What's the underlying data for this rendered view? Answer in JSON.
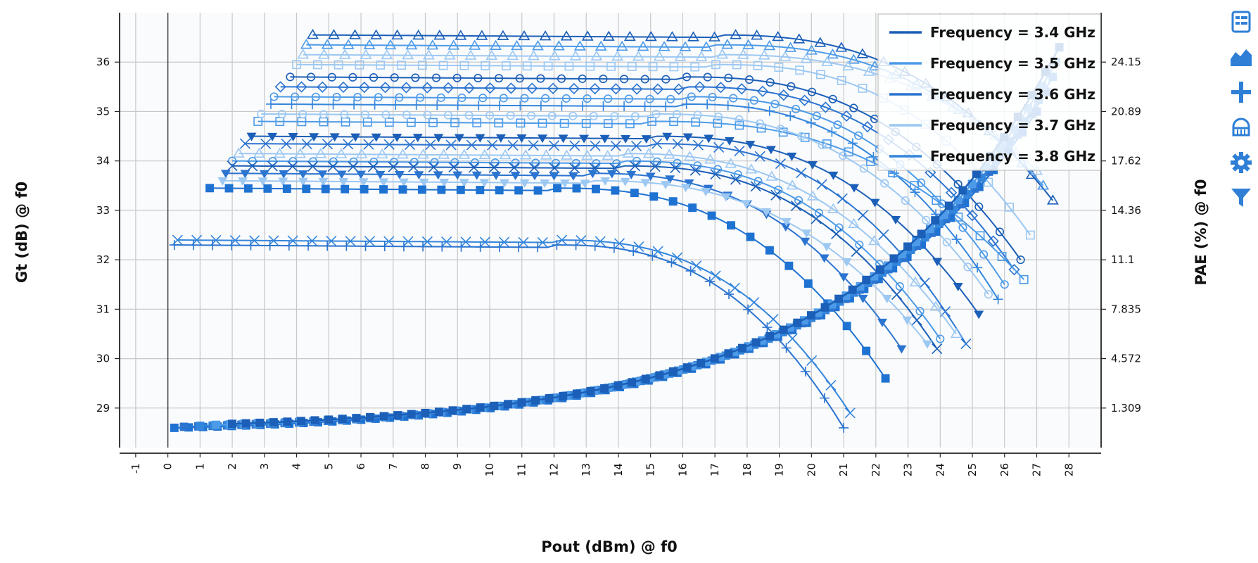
{
  "colors": {
    "background": "#ffffff",
    "plot_background": "#fafbfd",
    "grid": "#c8c8c8",
    "axis": "#222222",
    "legend_border": "#c0c0c0",
    "toolbar_icon": "#2f7fd6"
  },
  "toolbar": {
    "items": [
      {
        "icon": "legend-toggle-icon"
      },
      {
        "icon": "area-chart-icon"
      },
      {
        "icon": "crosshair-plus-icon"
      },
      {
        "icon": "reset-zoom-icon"
      },
      {
        "icon": "gear-icon"
      },
      {
        "icon": "filter-icon"
      }
    ]
  },
  "chart_data": {
    "type": "line",
    "title": "",
    "xlabel": "Pout (dBm) @ f0",
    "ylabel": "Gt (dB) @ f0",
    "y2label": "PAE (%) @ f0",
    "xlim": [
      -1.5,
      29
    ],
    "ylim": [
      28.2,
      37
    ],
    "x_ticks": [
      -1,
      0,
      1,
      2,
      3,
      4,
      5,
      6,
      7,
      8,
      9,
      10,
      11,
      12,
      13,
      14,
      15,
      16,
      17,
      18,
      19,
      20,
      21,
      22,
      23,
      24,
      25,
      26,
      27,
      28
    ],
    "y_ticks": [
      29,
      30,
      31,
      32,
      33,
      34,
      35,
      36
    ],
    "y2_tick_labels": [
      {
        "y": 29,
        "label": "1.309"
      },
      {
        "y": 30,
        "label": "4.572"
      },
      {
        "y": 31,
        "label": "7.835"
      },
      {
        "y": 32,
        "label": "11.1"
      },
      {
        "y": 33,
        "label": "14.36"
      },
      {
        "y": 34,
        "label": "17.62"
      },
      {
        "y": 35,
        "label": "20.89"
      },
      {
        "y": 36,
        "label": "24.15"
      }
    ],
    "grid": true,
    "legend_position": "top-right",
    "legend": [
      {
        "label": "Frequency = 3.4 GHz",
        "color": "#1b5fb8"
      },
      {
        "label": "Frequency = 3.5 GHz",
        "color": "#4d9be8"
      },
      {
        "label": "Frequency = 3.6 GHz",
        "color": "#2b74d0"
      },
      {
        "label": "Frequency = 3.7 GHz",
        "color": "#9cc8f2"
      },
      {
        "label": "Frequency = 3.8 GHz",
        "color": "#3486dc"
      }
    ],
    "gain_curves": [
      {
        "color": "#1b5fb8",
        "marker": "triangle",
        "start_x": 4.5,
        "end_x": 27.5,
        "flat_gain": 36.55,
        "compression_start": 17,
        "final_gain": 33.2
      },
      {
        "color": "#4d9be8",
        "marker": "triangle",
        "start_x": 4.3,
        "end_x": 27.2,
        "flat_gain": 36.35,
        "compression_start": 17,
        "final_gain": 33.5
      },
      {
        "color": "#9cc8f2",
        "marker": "triangle",
        "start_x": 4.2,
        "end_x": 27.0,
        "flat_gain": 36.15,
        "compression_start": 17,
        "final_gain": 33.8
      },
      {
        "color": "#9cc8f2",
        "marker": "square",
        "start_x": 4.0,
        "end_x": 26.8,
        "flat_gain": 35.95,
        "compression_start": 17,
        "final_gain": 32.5
      },
      {
        "color": "#1b5fb8",
        "marker": "circle",
        "start_x": 3.8,
        "end_x": 26.5,
        "flat_gain": 35.7,
        "compression_start": 16,
        "final_gain": 32.0
      },
      {
        "color": "#2b74d0",
        "marker": "diamond",
        "start_x": 3.5,
        "end_x": 26.3,
        "flat_gain": 35.5,
        "compression_start": 16,
        "final_gain": 31.8
      },
      {
        "color": "#4d9be8",
        "marker": "circle",
        "start_x": 3.3,
        "end_x": 26.0,
        "flat_gain": 35.3,
        "compression_start": 16,
        "final_gain": 31.5
      },
      {
        "color": "#3486dc",
        "marker": "plus",
        "start_x": 3.2,
        "end_x": 25.8,
        "flat_gain": 35.15,
        "compression_start": 16,
        "final_gain": 31.2
      },
      {
        "color": "#4d9be8",
        "marker": "square",
        "start_x": 2.8,
        "end_x": 26.6,
        "flat_gain": 34.8,
        "compression_start": 15,
        "final_gain": 31.6
      },
      {
        "color": "#9cc8f2",
        "marker": "circle",
        "start_x": 2.9,
        "end_x": 25.5,
        "flat_gain": 34.95,
        "compression_start": 15,
        "final_gain": 31.3
      },
      {
        "color": "#1b5fb8",
        "marker": "triangle_down",
        "start_x": 2.6,
        "end_x": 25.2,
        "flat_gain": 34.5,
        "compression_start": 15,
        "final_gain": 30.9
      },
      {
        "color": "#2b74d0",
        "marker": "x",
        "start_x": 2.4,
        "end_x": 24.8,
        "flat_gain": 34.35,
        "compression_start": 15,
        "final_gain": 30.3
      },
      {
        "color": "#9cc8f2",
        "marker": "triangle",
        "start_x": 2.2,
        "end_x": 24.5,
        "flat_gain": 34.15,
        "compression_start": 14,
        "final_gain": 30.5
      },
      {
        "color": "#4d9be8",
        "marker": "circle",
        "start_x": 2.0,
        "end_x": 24.0,
        "flat_gain": 34.0,
        "compression_start": 14,
        "final_gain": 30.4
      },
      {
        "color": "#1b5fb8",
        "marker": "x",
        "start_x": 2.0,
        "end_x": 23.9,
        "flat_gain": 33.9,
        "compression_start": 14,
        "final_gain": 30.2
      },
      {
        "color": "#2b74d0",
        "marker": "triangle_down",
        "start_x": 1.8,
        "end_x": 22.8,
        "flat_gain": 33.75,
        "compression_start": 13,
        "final_gain": 30.2
      },
      {
        "color": "#9cc8f2",
        "marker": "triangle_down",
        "start_x": 1.7,
        "end_x": 23.6,
        "flat_gain": 33.6,
        "compression_start": 13,
        "final_gain": 30.3
      },
      {
        "color": "#1e72d2",
        "marker": "square_filled",
        "start_x": 1.3,
        "end_x": 22.3,
        "flat_gain": 33.45,
        "compression_start": 12,
        "final_gain": 29.6
      },
      {
        "color": "#3486dc",
        "marker": "x",
        "start_x": 0.3,
        "end_x": 21.2,
        "flat_gain": 32.4,
        "compression_start": 12,
        "final_gain": 28.9
      },
      {
        "color": "#2b74d0",
        "marker": "plus",
        "start_x": 0.2,
        "end_x": 21.0,
        "flat_gain": 32.3,
        "compression_start": 12,
        "final_gain": 28.6
      }
    ],
    "pae_curves": [
      {
        "color": "#1e72d2",
        "start_x": 0.2,
        "end_x": 27.0,
        "start_gt": 28.6,
        "end_gt": 35.0
      },
      {
        "color": "#2b74d0",
        "start_x": 0.5,
        "end_x": 27.3,
        "start_gt": 28.62,
        "end_gt": 35.4
      },
      {
        "color": "#3486dc",
        "start_x": 1.0,
        "end_x": 27.5,
        "start_gt": 28.64,
        "end_gt": 35.7
      },
      {
        "color": "#4d9be8",
        "start_x": 1.5,
        "end_x": 27.6,
        "start_gt": 28.66,
        "end_gt": 36.0
      },
      {
        "color": "#1b5fb8",
        "start_x": 2.0,
        "end_x": 27.7,
        "start_gt": 28.68,
        "end_gt": 36.3
      }
    ]
  }
}
